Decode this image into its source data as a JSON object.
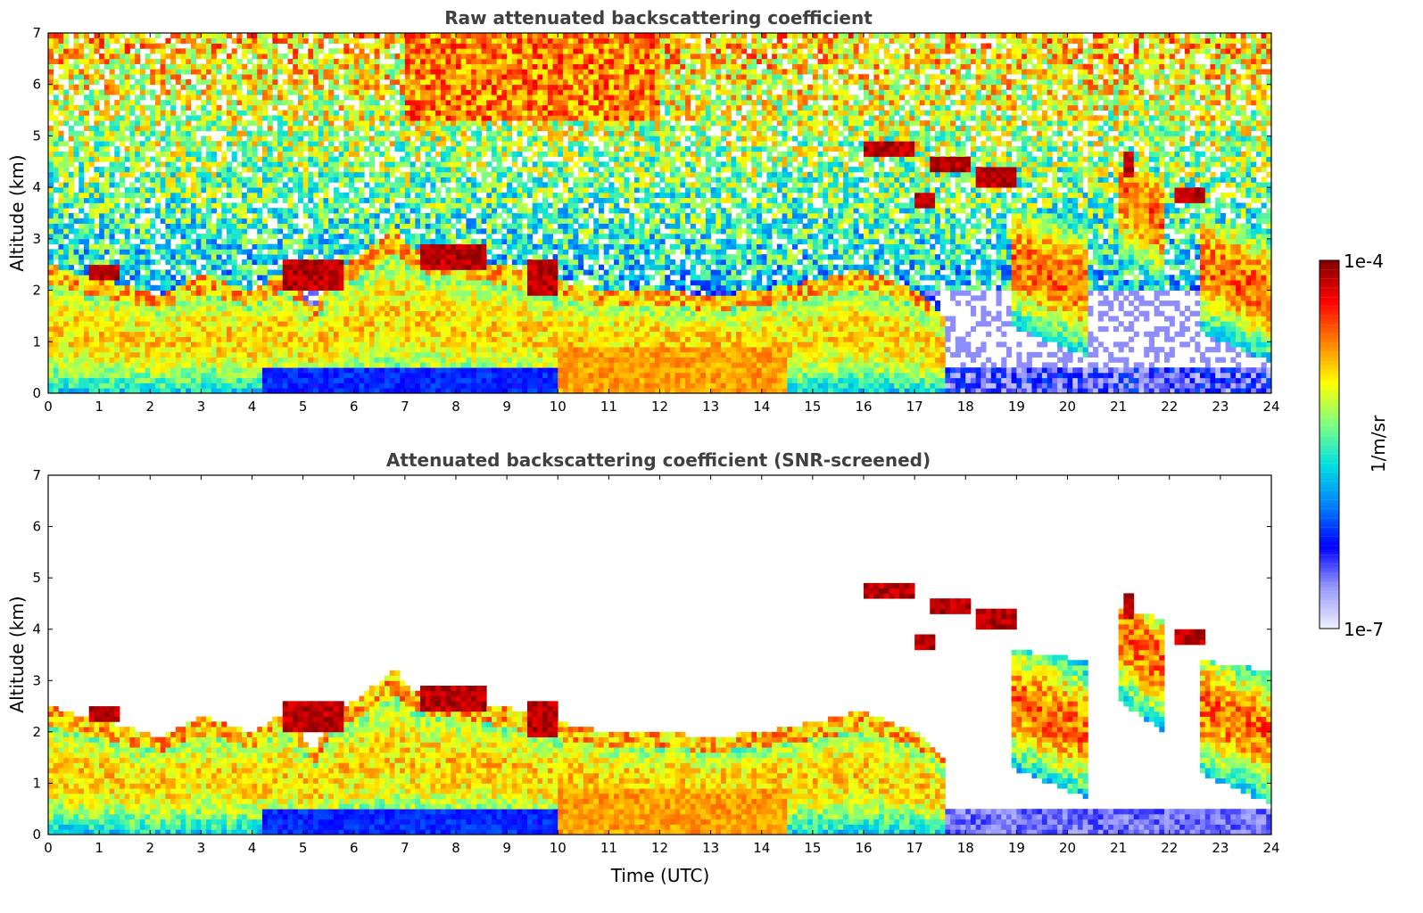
{
  "chart_data": [
    {
      "type": "heatmap",
      "title": "Raw attenuated backscattering coefficient",
      "xlabel": "",
      "ylabel": "Altitude (km)",
      "xlim": [
        0,
        24
      ],
      "ylim": [
        0,
        7
      ],
      "xticks": [
        "0",
        "1",
        "2",
        "3",
        "4",
        "5",
        "6",
        "7",
        "8",
        "9",
        "10",
        "11",
        "12",
        "13",
        "14",
        "15",
        "16",
        "17",
        "18",
        "19",
        "20",
        "21",
        "22",
        "23",
        "24"
      ],
      "yticks": [
        "0",
        "1",
        "2",
        "3",
        "4",
        "5",
        "6",
        "7"
      ],
      "screened": false
    },
    {
      "type": "heatmap",
      "title": "Attenuated backscattering coefficient (SNR-screened)",
      "xlabel": "Time (UTC)",
      "ylabel": "Altitude (km)",
      "xlim": [
        0,
        24
      ],
      "ylim": [
        0,
        7
      ],
      "xticks": [
        "0",
        "1",
        "2",
        "3",
        "4",
        "5",
        "6",
        "7",
        "8",
        "9",
        "10",
        "11",
        "12",
        "13",
        "14",
        "15",
        "16",
        "17",
        "18",
        "19",
        "20",
        "21",
        "22",
        "23",
        "24"
      ],
      "yticks": [
        "0",
        "1",
        "2",
        "3",
        "4",
        "5",
        "6",
        "7"
      ],
      "screened": true
    }
  ],
  "colorbar": {
    "label": "1/m/sr",
    "max_label": "1e-4",
    "min_label": "1e-7",
    "colors": [
      "#efefff",
      "#9999ff",
      "#0000ff",
      "#0080ff",
      "#00e0e0",
      "#80ff80",
      "#ffff00",
      "#ff8000",
      "#ff0000",
      "#800000"
    ]
  },
  "features": {
    "boundary_layer": [
      [
        0,
        2.5
      ],
      [
        0.7,
        2.3
      ],
      [
        1.5,
        2.1
      ],
      [
        2.2,
        1.9
      ],
      [
        3,
        2.3
      ],
      [
        4,
        2.0
      ],
      [
        4.7,
        2.4
      ],
      [
        5.2,
        1.6
      ],
      [
        5.6,
        2.4
      ],
      [
        6,
        2.6
      ],
      [
        6.8,
        3.2
      ],
      [
        7.2,
        2.8
      ],
      [
        8.3,
        2.6
      ],
      [
        9.3,
        2.4
      ],
      [
        10,
        2.2
      ],
      [
        11,
        2.0
      ],
      [
        12,
        2.0
      ],
      [
        13,
        1.9
      ],
      [
        14,
        2.0
      ],
      [
        15,
        2.2
      ],
      [
        16,
        2.4
      ],
      [
        17,
        2.0
      ],
      [
        17.6,
        1.5
      ]
    ],
    "cloud_segments": [
      {
        "x0": 0.8,
        "x1": 1.4,
        "y0": 2.2,
        "y1": 2.45
      },
      {
        "x0": 4.6,
        "x1": 5.8,
        "y0": 2.0,
        "y1": 2.6
      },
      {
        "x0": 7.3,
        "x1": 8.6,
        "y0": 2.4,
        "y1": 2.9
      },
      {
        "x0": 9.4,
        "x1": 10.0,
        "y0": 1.9,
        "y1": 2.6
      },
      {
        "x0": 16.0,
        "x1": 17.0,
        "y0": 4.6,
        "y1": 4.85
      },
      {
        "x0": 17.3,
        "x1": 18.1,
        "y0": 4.3,
        "y1": 4.55
      },
      {
        "x0": 18.2,
        "x1": 19.0,
        "y0": 4.05,
        "y1": 4.4
      },
      {
        "x0": 17.0,
        "x1": 17.4,
        "y0": 3.6,
        "y1": 3.9
      },
      {
        "x0": 21.1,
        "x1": 21.3,
        "y0": 4.2,
        "y1": 4.7
      },
      {
        "x0": 22.1,
        "x1": 22.7,
        "y0": 3.7,
        "y1": 3.95
      }
    ],
    "cirrus_segments": [
      {
        "x0": 18.9,
        "x1": 20.4,
        "y0": 0.9,
        "y1": 3.6
      },
      {
        "x0": 21.0,
        "x1": 21.9,
        "y0": 2.2,
        "y1": 4.4
      },
      {
        "x0": 22.6,
        "x1": 24.0,
        "y0": 0.8,
        "y1": 3.4
      }
    ]
  }
}
